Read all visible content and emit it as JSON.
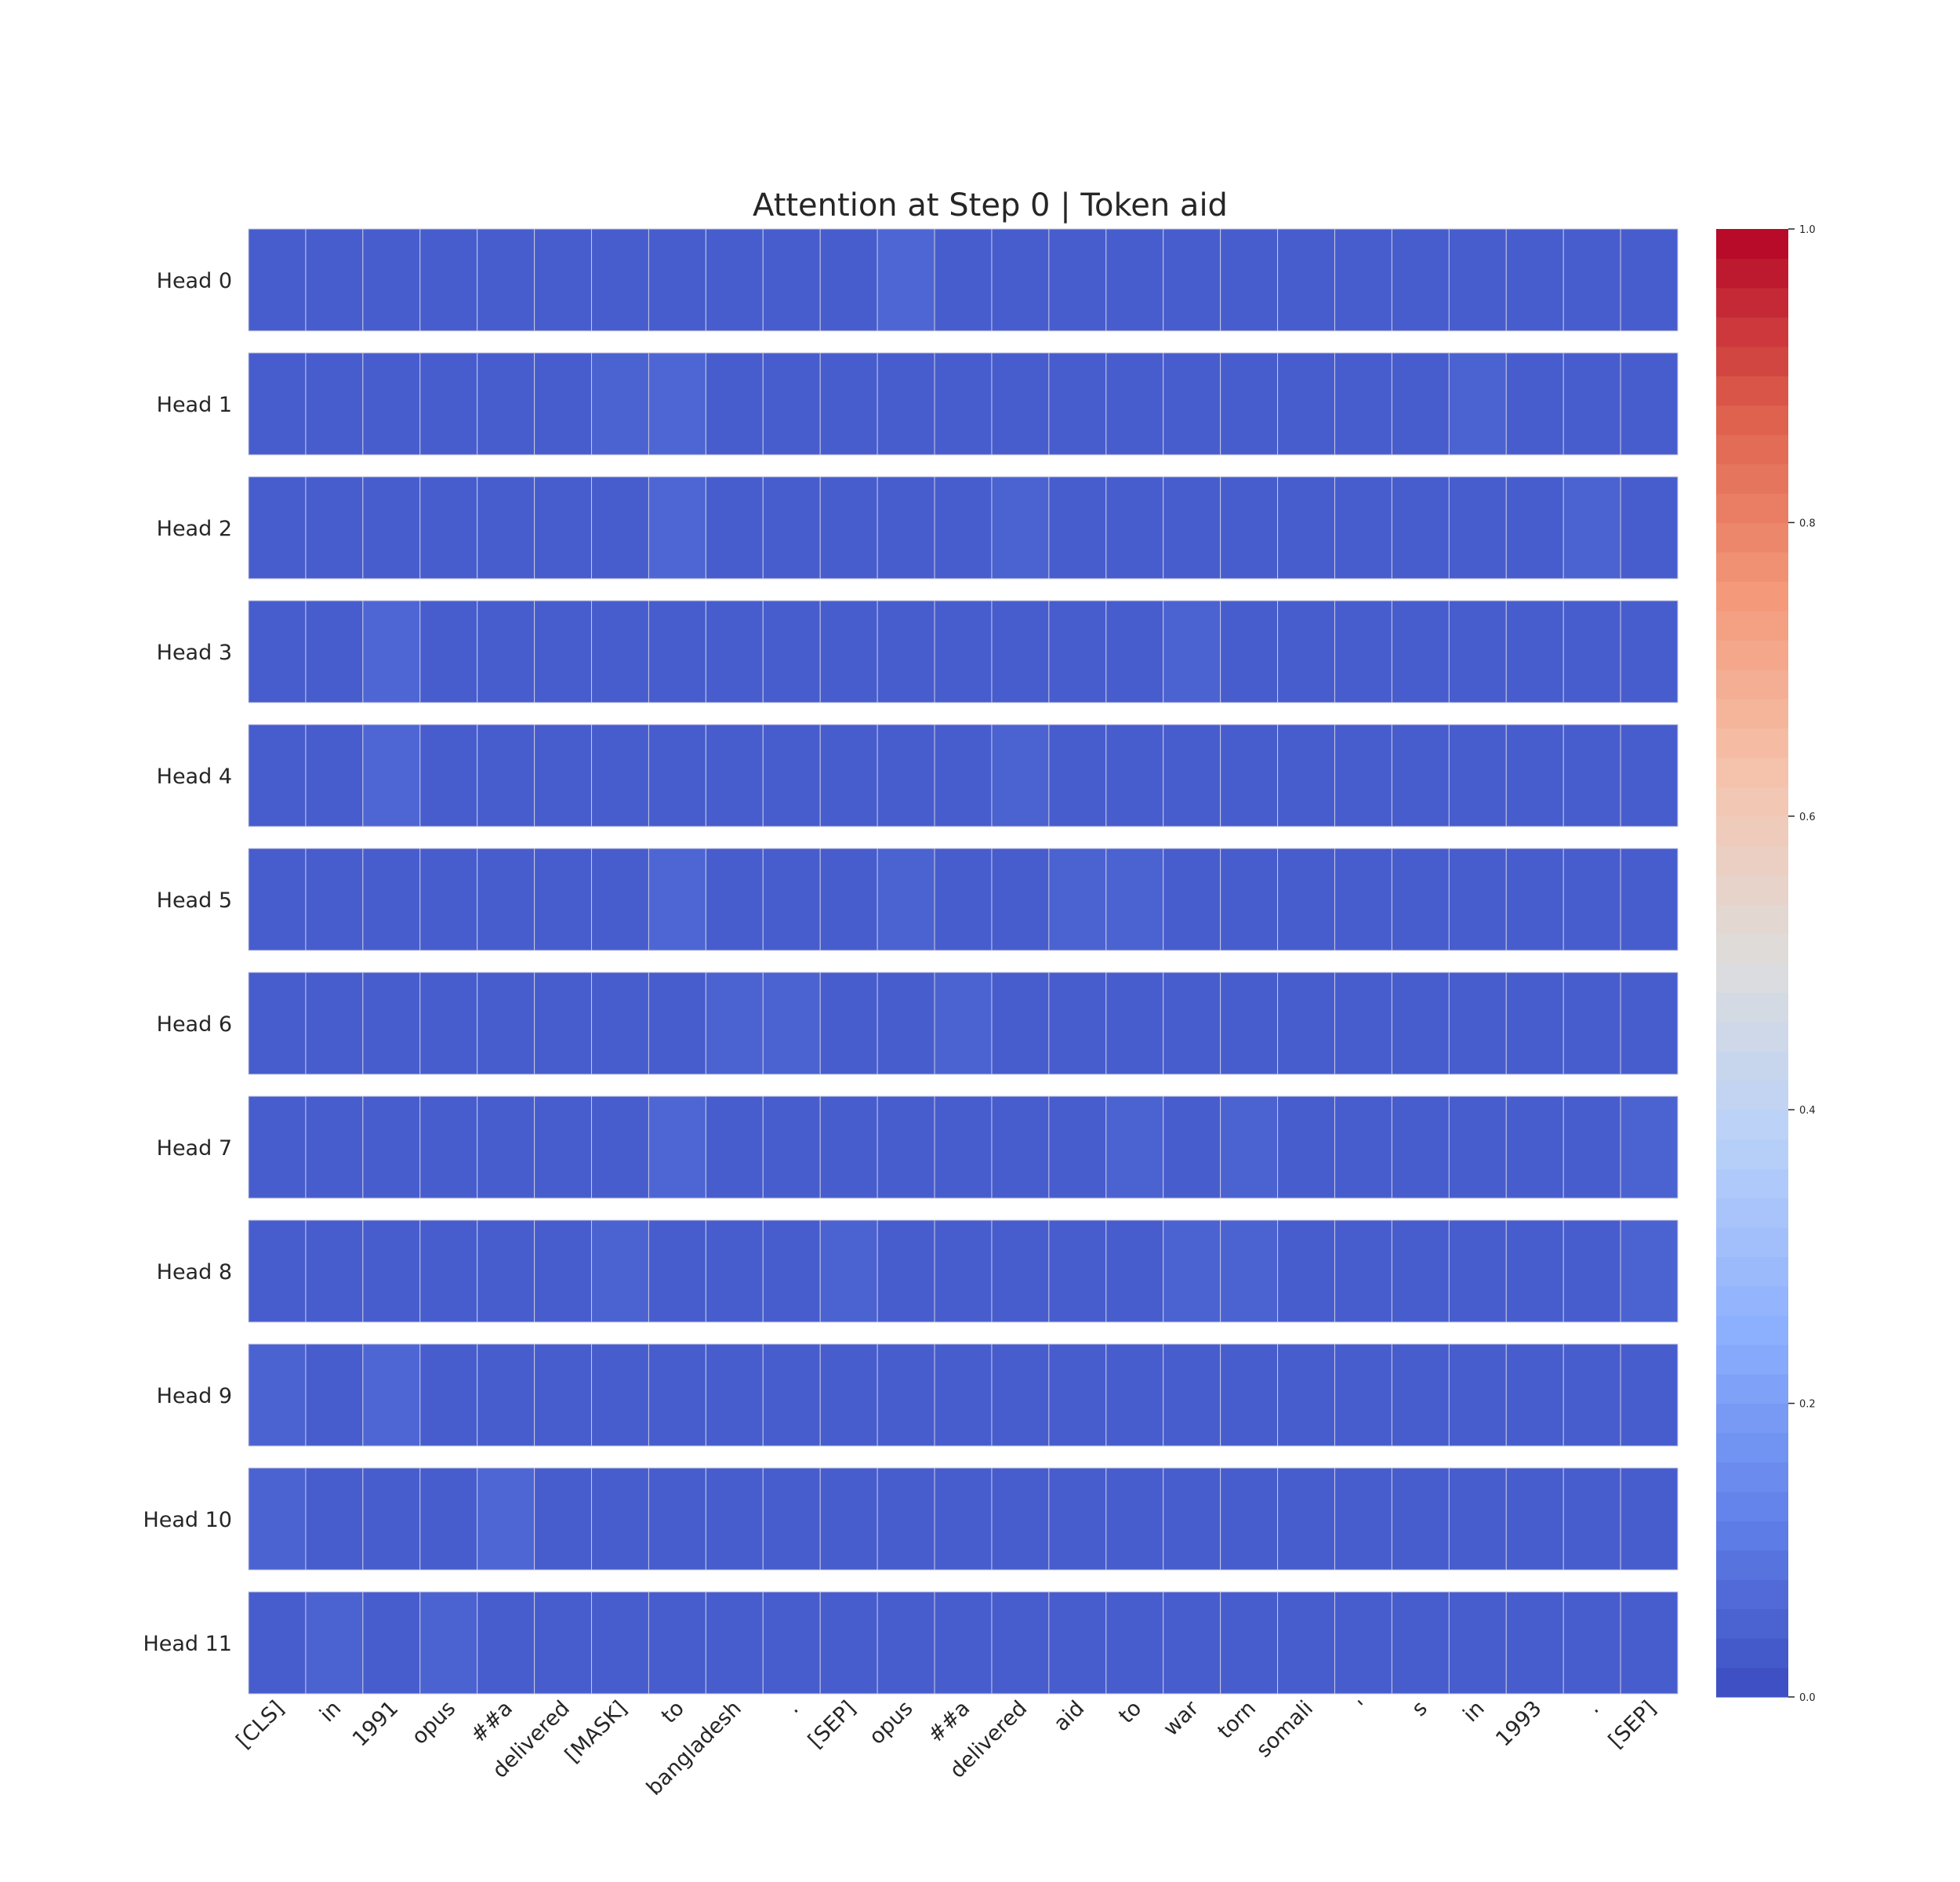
{
  "chart_data": {
    "type": "heatmap",
    "title": "Attention at Step 0 | Token aid",
    "rows": [
      "Head 0",
      "Head 1",
      "Head 2",
      "Head 3",
      "Head 4",
      "Head 5",
      "Head 6",
      "Head 7",
      "Head 8",
      "Head 9",
      "Head 10",
      "Head 11"
    ],
    "columns": [
      "[CLS]",
      "in",
      "1991",
      "opus",
      "##a",
      "delivered",
      "[MASK]",
      "to",
      "bangladesh",
      ".",
      "[SEP]",
      "opus",
      "##a",
      "delivered",
      "aid",
      "to",
      "war",
      "torn",
      "somali",
      "'",
      "s",
      "in",
      "1993",
      ".",
      "[SEP]"
    ],
    "values": [
      [
        0.04,
        0.04,
        0.04,
        0.04,
        0.04,
        0.04,
        0.04,
        0.04,
        0.04,
        0.04,
        0.04,
        0.06,
        0.04,
        0.04,
        0.04,
        0.04,
        0.04,
        0.04,
        0.04,
        0.04,
        0.04,
        0.04,
        0.04,
        0.04,
        0.04
      ],
      [
        0.04,
        0.04,
        0.04,
        0.04,
        0.04,
        0.04,
        0.05,
        0.06,
        0.04,
        0.04,
        0.04,
        0.04,
        0.04,
        0.04,
        0.04,
        0.04,
        0.04,
        0.04,
        0.04,
        0.04,
        0.04,
        0.05,
        0.04,
        0.04,
        0.04
      ],
      [
        0.04,
        0.04,
        0.04,
        0.04,
        0.04,
        0.04,
        0.04,
        0.06,
        0.04,
        0.04,
        0.04,
        0.04,
        0.04,
        0.05,
        0.04,
        0.04,
        0.04,
        0.04,
        0.04,
        0.04,
        0.04,
        0.04,
        0.04,
        0.05,
        0.04
      ],
      [
        0.04,
        0.04,
        0.06,
        0.04,
        0.04,
        0.04,
        0.04,
        0.04,
        0.04,
        0.04,
        0.04,
        0.04,
        0.04,
        0.04,
        0.04,
        0.04,
        0.05,
        0.04,
        0.04,
        0.04,
        0.04,
        0.04,
        0.04,
        0.04,
        0.04
      ],
      [
        0.04,
        0.04,
        0.06,
        0.04,
        0.04,
        0.04,
        0.04,
        0.04,
        0.04,
        0.04,
        0.04,
        0.04,
        0.04,
        0.05,
        0.04,
        0.04,
        0.04,
        0.04,
        0.04,
        0.04,
        0.04,
        0.04,
        0.04,
        0.04,
        0.04
      ],
      [
        0.04,
        0.04,
        0.04,
        0.04,
        0.04,
        0.04,
        0.04,
        0.06,
        0.04,
        0.04,
        0.04,
        0.05,
        0.04,
        0.04,
        0.05,
        0.05,
        0.04,
        0.04,
        0.04,
        0.04,
        0.04,
        0.04,
        0.04,
        0.04,
        0.04
      ],
      [
        0.04,
        0.04,
        0.04,
        0.04,
        0.04,
        0.04,
        0.04,
        0.04,
        0.05,
        0.05,
        0.04,
        0.04,
        0.05,
        0.04,
        0.04,
        0.04,
        0.04,
        0.04,
        0.04,
        0.04,
        0.04,
        0.04,
        0.04,
        0.04,
        0.04
      ],
      [
        0.04,
        0.04,
        0.04,
        0.04,
        0.04,
        0.04,
        0.04,
        0.06,
        0.04,
        0.04,
        0.04,
        0.04,
        0.04,
        0.04,
        0.04,
        0.05,
        0.04,
        0.05,
        0.04,
        0.04,
        0.04,
        0.04,
        0.04,
        0.04,
        0.05
      ],
      [
        0.04,
        0.04,
        0.04,
        0.04,
        0.04,
        0.04,
        0.05,
        0.04,
        0.04,
        0.04,
        0.05,
        0.04,
        0.04,
        0.04,
        0.04,
        0.04,
        0.05,
        0.05,
        0.04,
        0.04,
        0.04,
        0.04,
        0.04,
        0.04,
        0.05
      ],
      [
        0.05,
        0.04,
        0.06,
        0.04,
        0.04,
        0.04,
        0.04,
        0.04,
        0.04,
        0.04,
        0.04,
        0.04,
        0.04,
        0.04,
        0.04,
        0.04,
        0.04,
        0.04,
        0.04,
        0.04,
        0.04,
        0.04,
        0.04,
        0.04,
        0.04
      ],
      [
        0.05,
        0.04,
        0.04,
        0.04,
        0.06,
        0.04,
        0.04,
        0.04,
        0.04,
        0.04,
        0.04,
        0.04,
        0.04,
        0.04,
        0.04,
        0.04,
        0.04,
        0.04,
        0.04,
        0.04,
        0.04,
        0.04,
        0.04,
        0.04,
        0.04
      ],
      [
        0.04,
        0.05,
        0.04,
        0.05,
        0.04,
        0.04,
        0.04,
        0.04,
        0.04,
        0.04,
        0.04,
        0.04,
        0.04,
        0.04,
        0.04,
        0.04,
        0.04,
        0.04,
        0.04,
        0.04,
        0.04,
        0.04,
        0.04,
        0.04,
        0.04
      ]
    ],
    "colorbar": {
      "colormap": "coolwarm",
      "range": [
        0.0,
        1.0
      ],
      "ticks": [
        "0.0",
        "0.2",
        "0.4",
        "0.6",
        "0.8",
        "1.0"
      ]
    },
    "grid": false
  }
}
